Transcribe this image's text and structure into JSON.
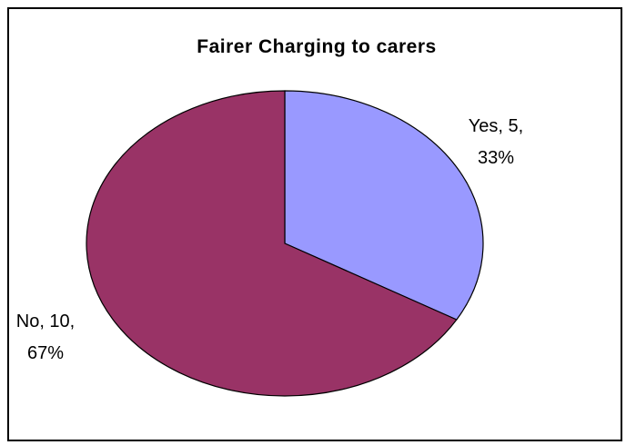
{
  "chart_data": {
    "type": "pie",
    "title": "Fairer Charging to carers",
    "slices": [
      {
        "label": "Yes",
        "value": 5,
        "percent": "33%",
        "color": "#9999ff"
      },
      {
        "label": "No",
        "value": 10,
        "percent": "67%",
        "color": "#993366"
      }
    ],
    "data_labels": [
      {
        "line1": "Yes, 5,",
        "line2": "33%"
      },
      {
        "line1": "No, 10,",
        "line2": "67%"
      }
    ],
    "start_angle": "12 o'clock",
    "direction": "clockwise"
  }
}
